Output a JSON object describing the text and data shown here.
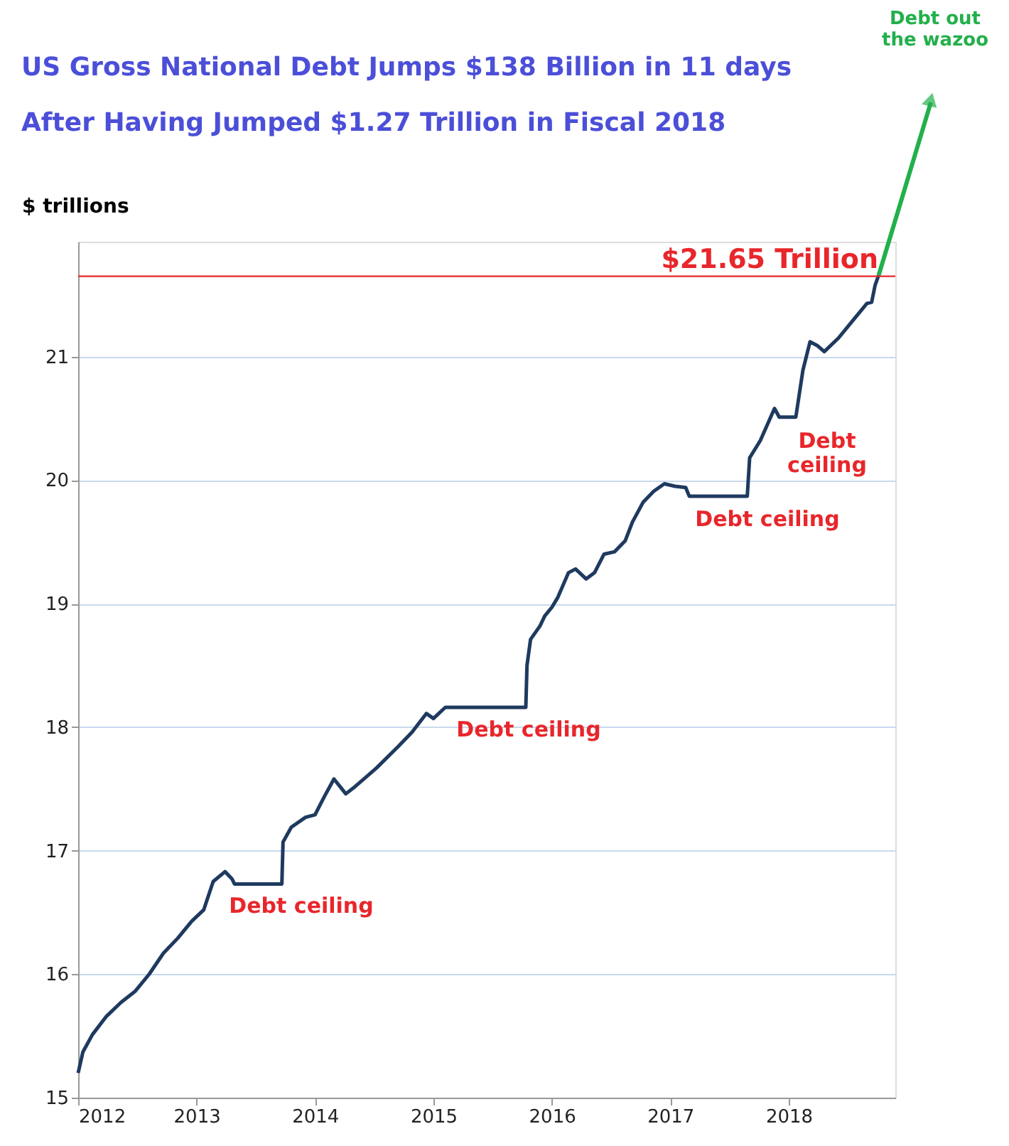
{
  "chart_data": {
    "type": "line",
    "title": [
      "US Gross National Debt Jumps $138 Billion in 11 days",
      "After Having Jumped $1.27 Trillion in Fiscal 2018"
    ],
    "ylabel": "$ trillions",
    "series": [
      {
        "color": "#1f3a5f",
        "x": [
          2012.0,
          2012.04,
          2012.12,
          2012.24,
          2012.36,
          2012.48,
          2012.6,
          2012.72,
          2012.84,
          2012.96,
          2013.06,
          2013.14,
          2013.24,
          2013.3,
          2013.32,
          2013.72,
          2013.73,
          2013.8,
          2013.92,
          2014.0,
          2014.08,
          2014.16,
          2014.26,
          2014.34,
          2014.52,
          2014.7,
          2014.82,
          2014.94,
          2015.0,
          2015.1,
          2015.78,
          2015.79,
          2015.82,
          2015.9,
          2015.94,
          2016.0,
          2016.05,
          2016.14,
          2016.2,
          2016.29,
          2016.36,
          2016.44,
          2016.53,
          2016.62,
          2016.68,
          2016.77,
          2016.86,
          2016.95,
          2017.04,
          2017.13,
          2017.16,
          2017.65,
          2017.67,
          2017.76,
          2017.88,
          2017.92,
          2018.06,
          2018.12,
          2018.18,
          2018.24,
          2018.3,
          2018.42,
          2018.54,
          2018.66,
          2018.7,
          2018.73,
          2018.76
        ],
        "values": [
          15.2,
          15.37,
          15.51,
          15.66,
          15.77,
          15.86,
          16.0,
          16.17,
          16.29,
          16.43,
          16.52,
          16.75,
          16.83,
          16.77,
          16.73,
          16.73,
          17.07,
          17.19,
          17.27,
          17.29,
          17.44,
          17.58,
          17.46,
          17.52,
          17.67,
          17.84,
          17.96,
          18.11,
          18.07,
          18.16,
          18.16,
          18.5,
          18.71,
          18.82,
          18.9,
          18.97,
          19.05,
          19.25,
          19.28,
          19.2,
          19.25,
          19.4,
          19.42,
          19.51,
          19.66,
          19.82,
          19.91,
          19.97,
          19.95,
          19.94,
          19.87,
          19.87,
          20.18,
          20.32,
          20.58,
          20.51,
          20.51,
          20.89,
          21.12,
          21.09,
          21.04,
          21.15,
          21.29,
          21.43,
          21.44,
          21.58,
          21.66
        ]
      }
    ],
    "xlim": [
      2012,
      2018.9
    ],
    "xticks": [
      2012,
      2013,
      2014,
      2015,
      2016,
      2017,
      2018
    ],
    "ylim": [
      15,
      21.93
    ],
    "yticks": [
      15,
      16,
      17,
      18,
      19,
      20,
      21
    ],
    "grid": "y",
    "ref_lines": [
      {
        "axis": "y",
        "value": 21.65,
        "label": "$21.65 Trillion",
        "color": "#e8262b"
      }
    ],
    "annotations": [
      "Debt ceiling",
      "Debt ceiling",
      "Debt ceiling",
      "Debt\nceiling",
      "Debt out the wazoo"
    ]
  }
}
